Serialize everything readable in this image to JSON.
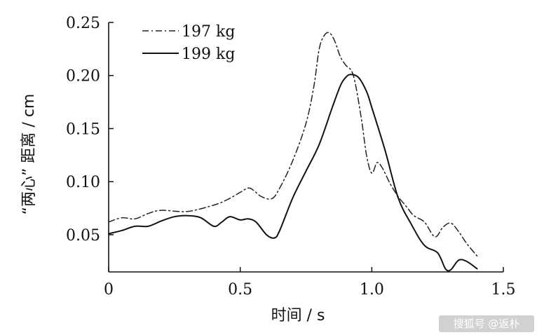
{
  "chart_data": {
    "type": "line",
    "title": "",
    "xlabel": "时间 / s",
    "ylabel": "“两心” 距离 / cm",
    "xlim": [
      0,
      1.5
    ],
    "ylim": [
      0.015,
      0.25
    ],
    "xticks": [
      0,
      0.5,
      1.0,
      1.5
    ],
    "xtick_labels": [
      "0",
      "0.5",
      "1.0",
      "1.5"
    ],
    "yticks": [
      0.05,
      0.1,
      0.15,
      0.2,
      0.25
    ],
    "ytick_labels": [
      "0.05",
      "0.10",
      "0.15",
      "0.20",
      "0.25"
    ],
    "grid": false,
    "legend_position": "top-left",
    "series": [
      {
        "name": "197 kg",
        "style": "dashdot",
        "color": "#222222",
        "x": [
          0,
          0.05,
          0.1,
          0.15,
          0.2,
          0.3,
          0.4,
          0.45,
          0.5,
          0.53,
          0.55,
          0.58,
          0.62,
          0.65,
          0.7,
          0.75,
          0.78,
          0.8,
          0.82,
          0.84,
          0.86,
          0.88,
          0.9,
          0.93,
          0.96,
          0.98,
          1.0,
          1.02,
          1.04,
          1.07,
          1.1,
          1.13,
          1.16,
          1.2,
          1.24,
          1.27,
          1.3,
          1.33,
          1.36,
          1.4
        ],
        "y": [
          0.062,
          0.066,
          0.065,
          0.07,
          0.073,
          0.072,
          0.078,
          0.083,
          0.09,
          0.094,
          0.092,
          0.086,
          0.084,
          0.094,
          0.12,
          0.155,
          0.19,
          0.225,
          0.238,
          0.24,
          0.232,
          0.218,
          0.21,
          0.2,
          0.16,
          0.125,
          0.108,
          0.118,
          0.113,
          0.098,
          0.086,
          0.077,
          0.068,
          0.062,
          0.048,
          0.057,
          0.061,
          0.053,
          0.042,
          0.03
        ]
      },
      {
        "name": "199 kg",
        "style": "solid",
        "color": "#111111",
        "x": [
          0,
          0.05,
          0.1,
          0.15,
          0.2,
          0.25,
          0.3,
          0.35,
          0.4,
          0.43,
          0.46,
          0.5,
          0.53,
          0.56,
          0.6,
          0.63,
          0.65,
          0.7,
          0.75,
          0.8,
          0.85,
          0.88,
          0.9,
          0.92,
          0.95,
          0.98,
          1.0,
          1.05,
          1.1,
          1.15,
          1.2,
          1.25,
          1.28,
          1.3,
          1.33,
          1.36,
          1.4
        ],
        "y": [
          0.051,
          0.054,
          0.058,
          0.058,
          0.063,
          0.067,
          0.068,
          0.066,
          0.058,
          0.062,
          0.067,
          0.064,
          0.065,
          0.062,
          0.05,
          0.047,
          0.054,
          0.085,
          0.11,
          0.135,
          0.17,
          0.19,
          0.198,
          0.201,
          0.198,
          0.185,
          0.17,
          0.13,
          0.085,
          0.06,
          0.04,
          0.033,
          0.018,
          0.017,
          0.026,
          0.025,
          0.018
        ]
      }
    ]
  },
  "watermark": {
    "text": "搜狐号 @返朴"
  }
}
